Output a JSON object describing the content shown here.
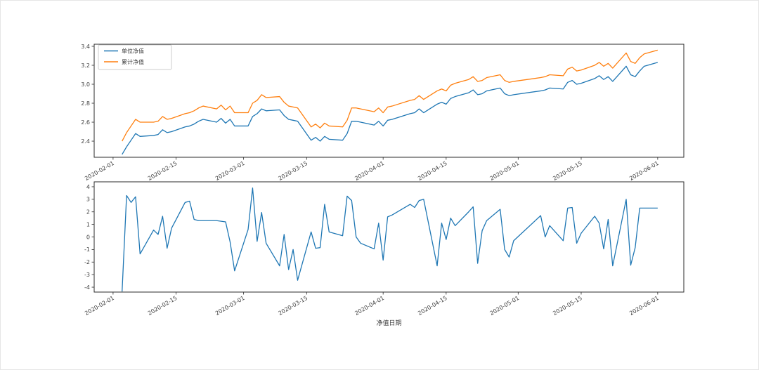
{
  "figure": {
    "background": "#ffffff",
    "spine_color": "#2b2b2b",
    "tick_text_color": "#3c3c3c"
  },
  "legend": {
    "position": "upper left",
    "labels": [
      "单位净值",
      "累计净值"
    ]
  },
  "chart_data": {
    "dates": [
      "2020-02-03",
      "2020-02-04",
      "2020-02-05",
      "2020-02-06",
      "2020-02-07",
      "2020-02-10",
      "2020-02-11",
      "2020-02-12",
      "2020-02-13",
      "2020-02-14",
      "2020-02-17",
      "2020-02-18",
      "2020-02-19",
      "2020-02-20",
      "2020-02-21",
      "2020-02-24",
      "2020-02-25",
      "2020-02-26",
      "2020-02-27",
      "2020-02-28",
      "2020-03-02",
      "2020-03-03",
      "2020-03-04",
      "2020-03-05",
      "2020-03-06",
      "2020-03-09",
      "2020-03-10",
      "2020-03-11",
      "2020-03-12",
      "2020-03-13",
      "2020-03-16",
      "2020-03-17",
      "2020-03-18",
      "2020-03-19",
      "2020-03-20",
      "2020-03-23",
      "2020-03-24",
      "2020-03-25",
      "2020-03-26",
      "2020-03-27",
      "2020-03-30",
      "2020-03-31",
      "2020-04-01",
      "2020-04-02",
      "2020-04-03",
      "2020-04-07",
      "2020-04-08",
      "2020-04-09",
      "2020-04-10",
      "2020-04-13",
      "2020-04-14",
      "2020-04-15",
      "2020-04-16",
      "2020-04-17",
      "2020-04-20",
      "2020-04-21",
      "2020-04-22",
      "2020-04-23",
      "2020-04-24",
      "2020-04-27",
      "2020-04-28",
      "2020-04-29",
      "2020-04-30",
      "2020-05-06",
      "2020-05-07",
      "2020-05-08",
      "2020-05-11",
      "2020-05-12",
      "2020-05-13",
      "2020-05-14",
      "2020-05-15",
      "2020-05-18",
      "2020-05-19",
      "2020-05-20",
      "2020-05-21",
      "2020-05-22",
      "2020-05-25",
      "2020-05-26",
      "2020-05-27",
      "2020-05-28",
      "2020-05-29",
      "2020-06-01"
    ],
    "x_tick_labels": [
      "2020-02-01",
      "2020-02-15",
      "2020-03-01",
      "2020-03-15",
      "2020-04-01",
      "2020-04-15",
      "2020-05-01",
      "2020-05-15",
      "2020-06-01"
    ],
    "x_tick_day_offsets": [
      0,
      14,
      29,
      43,
      60,
      74,
      90,
      104,
      121
    ],
    "xlim_day_offsets": [
      -4.2,
      126.8
    ],
    "charts": [
      {
        "type": "line",
        "title": "",
        "xlabel": "",
        "ylabel": "",
        "grid": false,
        "ylim": [
          2.23,
          3.422
        ],
        "yticks": [
          2.4,
          2.6,
          2.8,
          3.0,
          3.2,
          3.4
        ],
        "ytick_labels": [
          "2.4",
          "2.6",
          "2.8",
          "3.0",
          "3.2",
          "3.4"
        ],
        "legend": true,
        "series": [
          {
            "name": "单位净值",
            "color": "#1f77b4",
            "values": [
              2.26,
              2.34,
              2.41,
              2.48,
              2.45,
              2.46,
              2.47,
              2.52,
              2.49,
              2.5,
              2.55,
              2.56,
              2.58,
              2.61,
              2.63,
              2.6,
              2.64,
              2.59,
              2.63,
              2.56,
              2.56,
              2.66,
              2.69,
              2.74,
              2.72,
              2.73,
              2.67,
              2.63,
              2.62,
              2.61,
              2.41,
              2.44,
              2.4,
              2.45,
              2.42,
              2.41,
              2.48,
              2.61,
              2.61,
              2.6,
              2.57,
              2.61,
              2.56,
              2.62,
              2.63,
              2.69,
              2.7,
              2.74,
              2.7,
              2.79,
              2.81,
              2.79,
              2.85,
              2.87,
              2.91,
              2.94,
              2.89,
              2.9,
              2.93,
              2.96,
              2.9,
              2.88,
              2.89,
              2.93,
              2.94,
              2.96,
              2.95,
              3.02,
              3.04,
              3.0,
              3.01,
              3.06,
              3.09,
              3.05,
              3.08,
              3.03,
              3.19,
              3.1,
              3.08,
              3.14,
              3.19,
              3.23
            ]
          },
          {
            "name": "累计净值",
            "color": "#ff7f0e",
            "values": [
              2.4,
              2.49,
              2.56,
              2.63,
              2.6,
              2.6,
              2.61,
              2.66,
              2.63,
              2.64,
              2.69,
              2.7,
              2.72,
              2.75,
              2.77,
              2.74,
              2.78,
              2.73,
              2.77,
              2.7,
              2.7,
              2.8,
              2.83,
              2.89,
              2.86,
              2.87,
              2.81,
              2.77,
              2.76,
              2.75,
              2.55,
              2.58,
              2.54,
              2.59,
              2.56,
              2.55,
              2.62,
              2.75,
              2.75,
              2.74,
              2.71,
              2.75,
              2.7,
              2.76,
              2.77,
              2.83,
              2.84,
              2.88,
              2.84,
              2.93,
              2.95,
              2.93,
              2.99,
              3.01,
              3.05,
              3.08,
              3.03,
              3.04,
              3.07,
              3.1,
              3.04,
              3.02,
              3.03,
              3.07,
              3.08,
              3.1,
              3.09,
              3.16,
              3.18,
              3.14,
              3.15,
              3.2,
              3.23,
              3.19,
              3.22,
              3.17,
              3.33,
              3.24,
              3.22,
              3.28,
              3.32,
              3.36
            ]
          }
        ]
      },
      {
        "type": "line",
        "title": "",
        "xlabel": "净值日期",
        "ylabel": "",
        "grid": false,
        "ylim": [
          -4.39,
          4.39
        ],
        "yticks": [
          -4,
          -3,
          -2,
          -1,
          0,
          1,
          2,
          3,
          4
        ],
        "ytick_labels": [
          "-4",
          "-3",
          "-2",
          "-1",
          "0",
          "1",
          "2",
          "3",
          "4"
        ],
        "legend": false,
        "series": [
          {
            "name": "",
            "color": "#1f77b4",
            "values": [
              -4.35,
              3.3,
              2.75,
              3.2,
              -1.35,
              0.55,
              0.2,
              1.65,
              -0.9,
              0.7,
              2.75,
              2.85,
              1.4,
              1.3,
              1.3,
              1.3,
              1.25,
              1.2,
              -0.4,
              -2.7,
              0.6,
              3.9,
              -0.35,
              1.95,
              -0.5,
              -2.3,
              0.2,
              -2.6,
              -1.0,
              -3.45,
              0.4,
              -0.9,
              -0.85,
              2.6,
              0.4,
              0.1,
              3.25,
              2.9,
              0.0,
              -0.5,
              -0.95,
              1.1,
              -1.85,
              1.6,
              1.75,
              2.6,
              2.35,
              2.9,
              3.0,
              -2.3,
              1.1,
              -0.2,
              1.5,
              0.9,
              2.0,
              2.4,
              -2.1,
              0.5,
              1.3,
              2.2,
              -1.0,
              -1.6,
              -0.3,
              1.7,
              0.0,
              0.9,
              -0.3,
              2.3,
              2.35,
              -0.5,
              0.3,
              1.65,
              1.1,
              -0.95,
              1.4,
              -2.3,
              3.0,
              -2.25,
              -0.85,
              2.3,
              2.3,
              2.3
            ]
          }
        ]
      }
    ]
  }
}
